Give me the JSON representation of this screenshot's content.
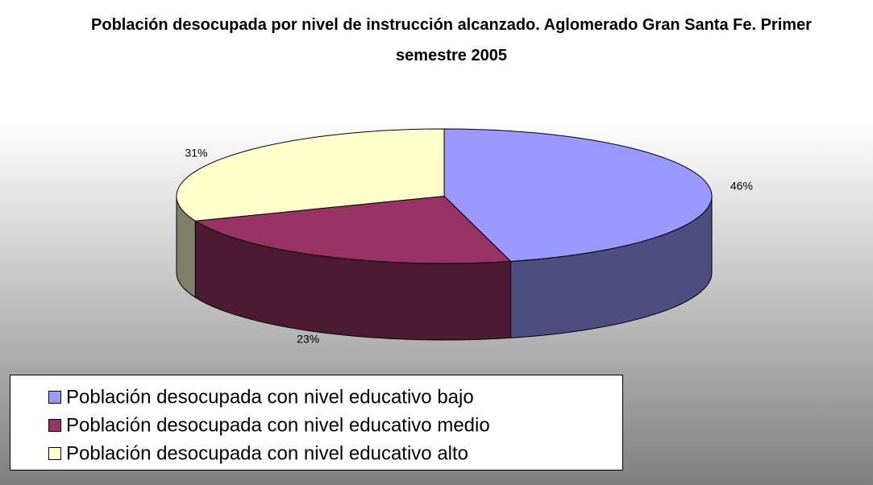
{
  "chart_data": {
    "type": "pie3d",
    "title": "Población desocupada por nivel de instrucción alcanzado. Aglomerado Gran Santa Fe. Primer semestre 2005",
    "categories": [
      "Población desocupada con nivel educativo bajo",
      "Población desocupada con nivel educativo medio",
      "Población desocupada con nivel educativo alto"
    ],
    "values": [
      46,
      23,
      31
    ],
    "value_labels": [
      "46%",
      "23%",
      "31%"
    ],
    "colors": [
      "#9999ff",
      "#993366",
      "#ffffcc"
    ],
    "legend": "bottom-left"
  }
}
